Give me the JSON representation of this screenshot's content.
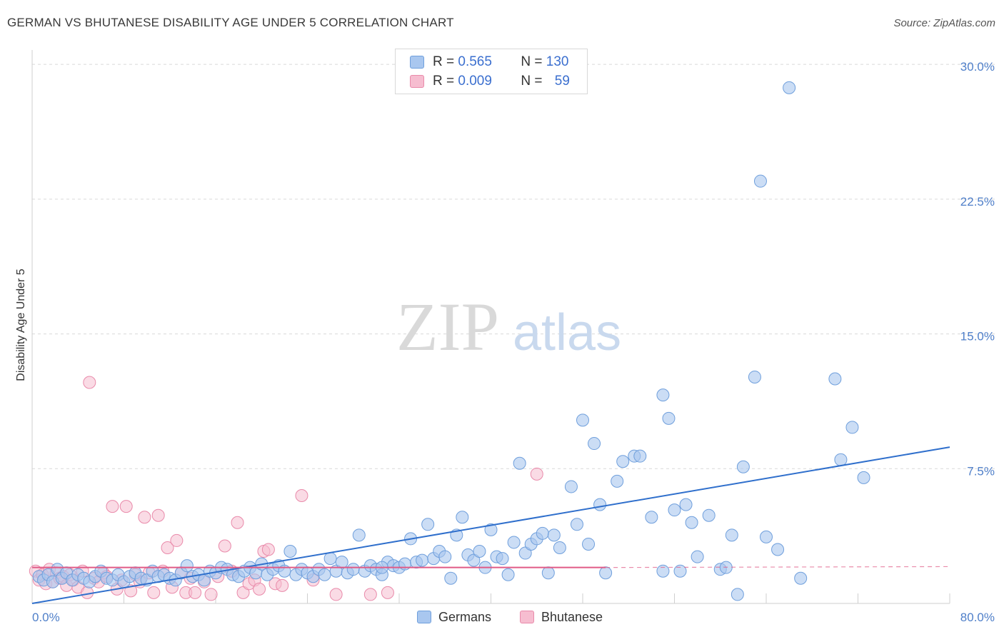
{
  "title": "GERMAN VS BHUTANESE DISABILITY AGE UNDER 5 CORRELATION CHART",
  "source": "Source: ZipAtlas.com",
  "watermark": {
    "zip": "ZIP",
    "atlas": "atlas"
  },
  "legend": {
    "r_label": "R = ",
    "n_label": "N = ",
    "rows": [
      {
        "series": "Germans",
        "r": "0.565",
        "n": "130"
      },
      {
        "series": "Bhutanese",
        "r": "0.009",
        "n": "59"
      }
    ]
  },
  "bottom_legend": [
    "Germans",
    "Bhutanese"
  ],
  "colors": {
    "germans_fill": "#a9c7ef",
    "germans_stroke": "#6f9fdc",
    "germans_line": "#2f6fcc",
    "bhutanese_fill": "#f6bdd0",
    "bhutanese_stroke": "#e98aaa",
    "bhutanese_line": "#e05a86",
    "tick_text": "#4f7fc9",
    "grid": "#d9d9d9"
  },
  "chart_data": {
    "type": "scatter",
    "title": "GERMAN VS BHUTANESE DISABILITY AGE UNDER 5 CORRELATION CHART",
    "xlabel": "",
    "ylabel": "Disability Age Under 5",
    "xlim": [
      0,
      80
    ],
    "ylim": [
      0,
      30.8
    ],
    "x_tick_labels": [
      "0.0%",
      "80.0%"
    ],
    "y_ticks": [
      7.5,
      15.0,
      22.5,
      30.0
    ],
    "y_tick_labels": [
      "7.5%",
      "15.0%",
      "22.5%",
      "30.0%"
    ],
    "grid": "horizontal dashed",
    "legend_placement": "top-center",
    "series": [
      {
        "name": "Germans",
        "trend": {
          "x": [
            0,
            80
          ],
          "y": [
            0.0,
            8.7
          ]
        },
        "points": [
          [
            0.6,
            1.5
          ],
          [
            1.0,
            1.3
          ],
          [
            1.4,
            1.6
          ],
          [
            1.8,
            1.2
          ],
          [
            2.2,
            1.9
          ],
          [
            2.6,
            1.4
          ],
          [
            3.0,
            1.7
          ],
          [
            3.5,
            1.3
          ],
          [
            4.0,
            1.6
          ],
          [
            4.5,
            1.4
          ],
          [
            5.0,
            1.2
          ],
          [
            5.5,
            1.5
          ],
          [
            6.0,
            1.8
          ],
          [
            6.5,
            1.4
          ],
          [
            7.0,
            1.3
          ],
          [
            7.5,
            1.6
          ],
          [
            8.0,
            1.2
          ],
          [
            8.5,
            1.5
          ],
          [
            9.0,
            1.7
          ],
          [
            9.5,
            1.4
          ],
          [
            10.0,
            1.3
          ],
          [
            10.5,
            1.8
          ],
          [
            11.0,
            1.5
          ],
          [
            11.5,
            1.6
          ],
          [
            12.0,
            1.4
          ],
          [
            12.5,
            1.3
          ],
          [
            13.0,
            1.7
          ],
          [
            13.5,
            2.1
          ],
          [
            14.0,
            1.5
          ],
          [
            14.5,
            1.6
          ],
          [
            15.0,
            1.3
          ],
          [
            15.5,
            1.8
          ],
          [
            16.0,
            1.7
          ],
          [
            16.5,
            2.0
          ],
          [
            17.0,
            1.9
          ],
          [
            17.5,
            1.6
          ],
          [
            18.0,
            1.5
          ],
          [
            18.5,
            1.8
          ],
          [
            19.0,
            2.0
          ],
          [
            19.5,
            1.7
          ],
          [
            20.0,
            2.2
          ],
          [
            20.5,
            1.6
          ],
          [
            21.0,
            1.9
          ],
          [
            21.5,
            2.1
          ],
          [
            22.0,
            1.8
          ],
          [
            22.5,
            2.9
          ],
          [
            23.0,
            1.6
          ],
          [
            23.5,
            1.9
          ],
          [
            24.0,
            1.7
          ],
          [
            24.5,
            1.5
          ],
          [
            25.0,
            1.9
          ],
          [
            25.5,
            1.6
          ],
          [
            26.0,
            2.5
          ],
          [
            26.5,
            1.8
          ],
          [
            27.0,
            2.3
          ],
          [
            27.5,
            1.7
          ],
          [
            28.0,
            1.9
          ],
          [
            28.5,
            3.8
          ],
          [
            29.0,
            1.8
          ],
          [
            29.5,
            2.1
          ],
          [
            30.0,
            1.9
          ],
          [
            30.5,
            1.6
          ],
          [
            31.0,
            2.3
          ],
          [
            31.5,
            2.1
          ],
          [
            32.0,
            2.0
          ],
          [
            32.5,
            2.2
          ],
          [
            33.0,
            3.6
          ],
          [
            33.5,
            2.3
          ],
          [
            34.0,
            2.4
          ],
          [
            34.5,
            4.4
          ],
          [
            35.0,
            2.5
          ],
          [
            35.5,
            2.9
          ],
          [
            36.0,
            2.6
          ],
          [
            36.5,
            1.4
          ],
          [
            37.0,
            3.8
          ],
          [
            37.5,
            4.8
          ],
          [
            38.0,
            2.7
          ],
          [
            38.5,
            2.4
          ],
          [
            39.0,
            2.9
          ],
          [
            39.5,
            2.0
          ],
          [
            40.0,
            4.1
          ],
          [
            40.5,
            2.6
          ],
          [
            41.0,
            2.5
          ],
          [
            41.5,
            1.6
          ],
          [
            42.0,
            3.4
          ],
          [
            42.5,
            7.8
          ],
          [
            43.0,
            2.8
          ],
          [
            43.5,
            3.3
          ],
          [
            44.0,
            3.6
          ],
          [
            44.5,
            3.9
          ],
          [
            45.0,
            1.7
          ],
          [
            45.5,
            3.8
          ],
          [
            46.0,
            3.1
          ],
          [
            47.0,
            6.5
          ],
          [
            47.5,
            4.4
          ],
          [
            48.0,
            10.2
          ],
          [
            48.5,
            3.3
          ],
          [
            49.0,
            8.9
          ],
          [
            49.5,
            5.5
          ],
          [
            50.0,
            1.7
          ],
          [
            51.0,
            6.8
          ],
          [
            51.5,
            7.9
          ],
          [
            52.5,
            8.2
          ],
          [
            53.0,
            8.2
          ],
          [
            54.0,
            4.8
          ],
          [
            55.0,
            11.6
          ],
          [
            55.5,
            10.3
          ],
          [
            56.0,
            5.2
          ],
          [
            56.5,
            1.8
          ],
          [
            57.0,
            5.5
          ],
          [
            57.5,
            4.5
          ],
          [
            58.0,
            2.6
          ],
          [
            59.0,
            4.9
          ],
          [
            60.0,
            1.9
          ],
          [
            60.5,
            2.0
          ],
          [
            61.0,
            3.8
          ],
          [
            61.5,
            0.5
          ],
          [
            62.0,
            7.6
          ],
          [
            63.0,
            12.6
          ],
          [
            64.0,
            3.7
          ],
          [
            65.0,
            3.0
          ],
          [
            66.0,
            28.7
          ],
          [
            67.0,
            1.4
          ],
          [
            70.0,
            12.5
          ],
          [
            70.5,
            8.0
          ],
          [
            71.5,
            9.8
          ],
          [
            72.5,
            7.0
          ],
          [
            63.5,
            23.5
          ],
          [
            55.0,
            1.8
          ],
          [
            30.5,
            2.0
          ]
        ]
      },
      {
        "name": "Bhutanese",
        "trend": {
          "x": [
            0,
            50
          ],
          "y": [
            2.0,
            2.0
          ]
        },
        "points": [
          [
            0.3,
            1.8
          ],
          [
            0.6,
            1.3
          ],
          [
            0.9,
            1.6
          ],
          [
            1.2,
            1.1
          ],
          [
            1.5,
            1.9
          ],
          [
            1.8,
            1.2
          ],
          [
            2.1,
            1.7
          ],
          [
            2.4,
            1.4
          ],
          [
            2.7,
            1.5
          ],
          [
            3.0,
            1.0
          ],
          [
            3.3,
            1.6
          ],
          [
            3.6,
            1.3
          ],
          [
            4.0,
            0.9
          ],
          [
            4.4,
            1.8
          ],
          [
            4.8,
            0.6
          ],
          [
            5.0,
            12.3
          ],
          [
            5.4,
            1.4
          ],
          [
            5.8,
            1.2
          ],
          [
            6.2,
            1.7
          ],
          [
            6.5,
            1.5
          ],
          [
            7.0,
            5.4
          ],
          [
            7.4,
            0.8
          ],
          [
            7.8,
            1.3
          ],
          [
            8.2,
            5.4
          ],
          [
            8.6,
            0.7
          ],
          [
            9.0,
            1.6
          ],
          [
            9.4,
            1.2
          ],
          [
            9.8,
            4.8
          ],
          [
            10.2,
            1.7
          ],
          [
            10.6,
            0.6
          ],
          [
            11.0,
            4.9
          ],
          [
            11.4,
            1.8
          ],
          [
            11.8,
            3.1
          ],
          [
            12.2,
            0.9
          ],
          [
            12.6,
            3.5
          ],
          [
            13.0,
            1.7
          ],
          [
            13.4,
            0.6
          ],
          [
            13.8,
            1.4
          ],
          [
            14.2,
            0.6
          ],
          [
            15.0,
            1.2
          ],
          [
            15.6,
            0.5
          ],
          [
            16.2,
            1.5
          ],
          [
            16.8,
            3.2
          ],
          [
            17.4,
            1.8
          ],
          [
            17.9,
            4.5
          ],
          [
            18.4,
            0.6
          ],
          [
            18.9,
            1.1
          ],
          [
            19.4,
            1.3
          ],
          [
            19.8,
            0.8
          ],
          [
            20.2,
            2.9
          ],
          [
            20.6,
            3.0
          ],
          [
            21.2,
            1.1
          ],
          [
            21.8,
            1.0
          ],
          [
            23.5,
            6.0
          ],
          [
            24.5,
            1.3
          ],
          [
            26.5,
            0.5
          ],
          [
            29.5,
            0.5
          ],
          [
            31.0,
            0.6
          ],
          [
            44.0,
            7.2
          ]
        ]
      }
    ]
  }
}
